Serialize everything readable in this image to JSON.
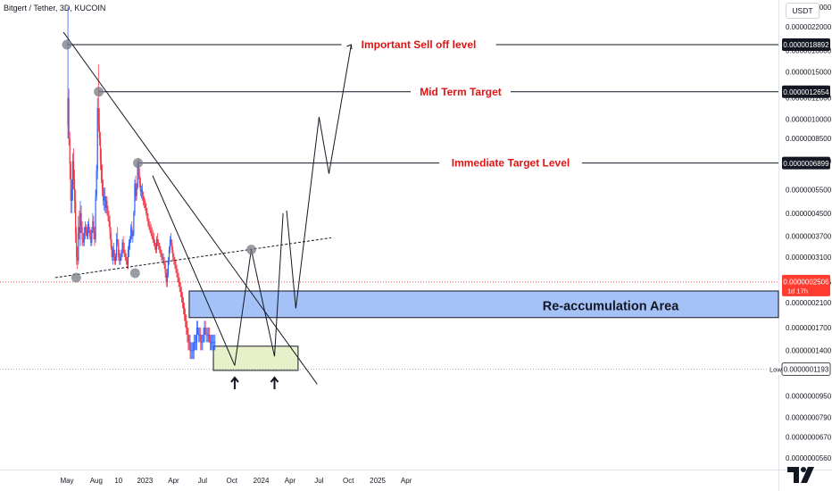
{
  "header": {
    "title": "Bitgert / Tether, 3D, KUCOIN",
    "currency": "USDT"
  },
  "colors": {
    "up": "#2962ff",
    "down": "#f23645",
    "annotation_red": "#e01414",
    "price_bg": "#ff3b30",
    "zone_blue": "#7ea6f5",
    "zone_green": "#e7f0c8",
    "marker_dot": "#787b86"
  },
  "chart_data": {
    "type": "candlestick",
    "symbol": "Bitgert / Tether",
    "interval": "3D",
    "exchange": "KUCOIN",
    "y_scale": "log",
    "y_tick_labels": [
      "0.0000026000",
      "0.0000022000",
      "0.0000018000",
      "0.0000015000",
      "0.0000012000",
      "0.0000010000",
      "0.0000008500",
      "0.0000007000",
      "0.0000005500",
      "0.0000004500",
      "0.0000003700",
      "0.0000003100",
      "0.0000002506",
      "0.0000002100",
      "0.0000001700",
      "0.0000001400",
      "0.0000001193",
      "0.0000000950",
      "0.0000000790",
      "0.0000000670",
      "0.0000000560"
    ],
    "x_tick_labels": [
      "May",
      "Aug",
      "10",
      "2023",
      "Apr",
      "Jul",
      "Oct",
      "2024",
      "Apr",
      "Jul",
      "Oct",
      "2025",
      "Apr"
    ],
    "levels": [
      {
        "label": "Important Sell off level",
        "price_label": "0.0000018892",
        "value": 1.8892e-06
      },
      {
        "label": "Mid Term Target",
        "price_label": "0.0000012654",
        "value": 1.2654e-06
      },
      {
        "label": "Immediate Target Level",
        "price_label": "0.0000006899",
        "value": 6.899e-07
      }
    ],
    "current_price": {
      "label": "0.0000002506",
      "value": 2.506e-07,
      "countdown": "1d 17h"
    },
    "low": {
      "tag": "Low",
      "label": "0.0000001193",
      "value": 1.193e-07
    },
    "zones": [
      {
        "label": "Re-accumulation Area",
        "from": 1.85e-07,
        "to": 2.32e-07
      },
      {
        "label": "",
        "from": 1.18e-07,
        "to": 1.45e-07
      }
    ],
    "candles": [
      [
        "2022-05-04",
        9.5e-07,
        2.6e-06,
        8.5e-07,
        1.2e-06
      ],
      [
        "2022-05-07",
        1.2e-06,
        1.3e-06,
        8e-07,
        8.5e-07
      ],
      [
        "2022-05-10",
        8.5e-07,
        9e-07,
        6e-07,
        6.8e-07
      ],
      [
        "2022-05-13",
        6.8e-07,
        7e-07,
        4.5e-07,
        5e-07
      ],
      [
        "2022-05-16",
        5e-07,
        6e-07,
        4.5e-07,
        5.5e-07
      ],
      [
        "2022-05-19",
        5.5e-07,
        7.5e-07,
        5e-07,
        7e-07
      ],
      [
        "2022-05-22",
        7e-07,
        7.8e-07,
        5.5e-07,
        6e-07
      ],
      [
        "2022-05-25",
        6e-07,
        6.5e-07,
        4.5e-07,
        5e-07
      ],
      [
        "2022-05-28",
        5e-07,
        5.5e-07,
        3.5e-07,
        3.8e-07
      ],
      [
        "2022-05-31",
        3.8e-07,
        4e-07,
        2.9e-07,
        3.1e-07
      ],
      [
        "2022-06-03",
        3.1e-07,
        3.4e-07,
        2.8e-07,
        3e-07
      ],
      [
        "2022-06-06",
        3e-07,
        4.4e-07,
        2.9e-07,
        4e-07
      ],
      [
        "2022-06-09",
        4e-07,
        4.6e-07,
        3.6e-07,
        3.8e-07
      ],
      [
        "2022-06-12",
        3.8e-07,
        5e-07,
        3.4e-07,
        4.5e-07
      ],
      [
        "2022-06-15",
        4.5e-07,
        4.8e-07,
        3.8e-07,
        4e-07
      ],
      [
        "2022-06-18",
        4e-07,
        4.2e-07,
        3.4e-07,
        3.6e-07
      ],
      [
        "2022-06-21",
        3.6e-07,
        3.8e-07,
        3.4e-07,
        3.5e-07
      ],
      [
        "2022-06-24",
        3.5e-07,
        4e-07,
        3.4e-07,
        3.8e-07
      ],
      [
        "2022-06-27",
        3.8e-07,
        4.2e-07,
        3.6e-07,
        4e-07
      ],
      [
        "2022-06-30",
        4e-07,
        4.1e-07,
        3.7e-07,
        3.9e-07
      ],
      [
        "2022-07-03",
        3.9e-07,
        4e-07,
        3.6e-07,
        3.7e-07
      ],
      [
        "2022-07-06",
        3.7e-07,
        4.2e-07,
        3.6e-07,
        4.1e-07
      ],
      [
        "2022-07-09",
        4.1e-07,
        4.3e-07,
        3.8e-07,
        3.9e-07
      ],
      [
        "2022-07-12",
        3.9e-07,
        4e-07,
        3.6e-07,
        3.7e-07
      ],
      [
        "2022-07-15",
        3.7e-07,
        3.9e-07,
        3.4e-07,
        3.5e-07
      ],
      [
        "2022-07-18",
        3.5e-07,
        4e-07,
        3.4e-07,
        3.9e-07
      ],
      [
        "2022-07-21",
        3.9e-07,
        4.5e-07,
        3.8e-07,
        4.2e-07
      ],
      [
        "2022-07-24",
        4.2e-07,
        4.4e-07,
        3.6e-07,
        3.8e-07
      ],
      [
        "2022-07-27",
        3.8e-07,
        4e-07,
        3.4e-07,
        3.6e-07
      ],
      [
        "2022-07-30",
        3.6e-07,
        5.5e-07,
        3.5e-07,
        5.2e-07
      ],
      [
        "2022-08-02",
        5.2e-07,
        6.8e-07,
        5e-07,
        6.5e-07
      ],
      [
        "2022-08-05",
        6.5e-07,
        1.2e-06,
        6e-07,
        1.1e-06
      ],
      [
        "2022-08-08",
        1.1e-06,
        1.6e-06,
        9e-07,
        9.5e-07
      ],
      [
        "2022-08-11",
        9.5e-07,
        1.1e-06,
        8e-07,
        8.5e-07
      ],
      [
        "2022-08-14",
        8.5e-07,
        9e-07,
        6.5e-07,
        7e-07
      ],
      [
        "2022-08-17",
        7e-07,
        7.8e-07,
        5.8e-07,
        6e-07
      ],
      [
        "2022-08-20",
        6e-07,
        6.8e-07,
        5.2e-07,
        5.5e-07
      ],
      [
        "2022-08-23",
        5.5e-07,
        6e-07,
        4.8e-07,
        5e-07
      ],
      [
        "2022-08-26",
        5e-07,
        5.6e-07,
        4.6e-07,
        5.2e-07
      ],
      [
        "2022-08-29",
        5.2e-07,
        5.6e-07,
        4.5e-07,
        4.7e-07
      ],
      [
        "2022-09-01",
        4.7e-07,
        5.2e-07,
        4.5e-07,
        5e-07
      ],
      [
        "2022-09-04",
        5e-07,
        5.2e-07,
        4.4e-07,
        4.5e-07
      ],
      [
        "2022-09-07",
        4.5e-07,
        4.8e-07,
        4.2e-07,
        4.4e-07
      ],
      [
        "2022-09-10",
        4.4e-07,
        4.6e-07,
        4e-07,
        4.2e-07
      ],
      [
        "2022-09-13",
        4.2e-07,
        4.4e-07,
        3.6e-07,
        3.8e-07
      ],
      [
        "2022-09-16",
        3.8e-07,
        4e-07,
        3.3e-07,
        3.4e-07
      ],
      [
        "2022-09-19",
        3.4e-07,
        3.6e-07,
        3e-07,
        3.1e-07
      ],
      [
        "2022-09-22",
        3.1e-07,
        3.4e-07,
        2.9e-07,
        3.3e-07
      ],
      [
        "2022-09-25",
        3.3e-07,
        3.5e-07,
        3e-07,
        3.1e-07
      ],
      [
        "2022-09-28",
        3.1e-07,
        3.3e-07,
        2.9e-07,
        3e-07
      ],
      [
        "2022-10-01",
        3e-07,
        3.2e-07,
        2.9e-07,
        3.1e-07
      ],
      [
        "2022-10-04",
        3.1e-07,
        3.8e-07,
        3e-07,
        3.6e-07
      ],
      [
        "2022-10-07",
        3.6e-07,
        4e-07,
        3.4e-07,
        3.5e-07
      ],
      [
        "2022-10-10",
        3.5e-07,
        3.6e-07,
        3e-07,
        3.1e-07
      ],
      [
        "2022-10-13",
        3.1e-07,
        3.3e-07,
        2.9e-07,
        3e-07
      ],
      [
        "2022-10-16",
        3e-07,
        3.2e-07,
        2.9e-07,
        3.1e-07
      ],
      [
        "2022-10-19",
        3.1e-07,
        3.3e-07,
        3e-07,
        3.2e-07
      ],
      [
        "2022-10-22",
        3.2e-07,
        3.6e-07,
        3.1e-07,
        3.5e-07
      ],
      [
        "2022-10-25",
        3.5e-07,
        3.7e-07,
        3.2e-07,
        3.3e-07
      ],
      [
        "2022-10-28",
        3.3e-07,
        3.5e-07,
        3.1e-07,
        3.2e-07
      ],
      [
        "2022-10-31",
        3.2e-07,
        3.3e-07,
        3e-07,
        3.1e-07
      ],
      [
        "2022-11-03",
        3.1e-07,
        3.2e-07,
        2.9e-07,
        3e-07
      ],
      [
        "2022-11-06",
        3e-07,
        3.1e-07,
        2.8e-07,
        2.9e-07
      ],
      [
        "2022-11-09",
        2.9e-07,
        3.4e-07,
        2.8e-07,
        3.3e-07
      ],
      [
        "2022-11-12",
        3.3e-07,
        3.6e-07,
        3.1e-07,
        3.5e-07
      ],
      [
        "2022-11-15",
        3.5e-07,
        3.7e-07,
        3.3e-07,
        3.6e-07
      ],
      [
        "2022-11-18",
        3.6e-07,
        4.1e-07,
        3.5e-07,
        4e-07
      ],
      [
        "2022-11-21",
        4e-07,
        4.2e-07,
        3.6e-07,
        3.7e-07
      ],
      [
        "2022-11-24",
        3.7e-07,
        3.9e-07,
        3.5e-07,
        3.8e-07
      ],
      [
        "2022-11-27",
        3.8e-07,
        4.6e-07,
        3.7e-07,
        4.5e-07
      ],
      [
        "2022-11-30",
        4.5e-07,
        6e-07,
        4.4e-07,
        5.8e-07
      ],
      [
        "2022-12-03",
        5.8e-07,
        6.2e-07,
        5e-07,
        5.2e-07
      ],
      [
        "2022-12-06",
        5.2e-07,
        5.8e-07,
        5e-07,
        5.6e-07
      ],
      [
        "2022-12-09",
        5.6e-07,
        7e-07,
        5.5e-07,
        6.8e-07
      ],
      [
        "2022-12-12",
        6.8e-07,
        7.2e-07,
        6e-07,
        6.2e-07
      ],
      [
        "2022-12-15",
        6.2e-07,
        6.6e-07,
        5.6e-07,
        5.8e-07
      ],
      [
        "2022-12-18",
        5.8e-07,
        6.1e-07,
        5.2e-07,
        5.4e-07
      ],
      [
        "2022-12-21",
        5.4e-07,
        5.7e-07,
        5.1e-07,
        5.5e-07
      ],
      [
        "2022-12-24",
        5.5e-07,
        5.8e-07,
        5e-07,
        5.2e-07
      ],
      [
        "2022-12-27",
        5.2e-07,
        5.4e-07,
        4.8e-07,
        5e-07
      ],
      [
        "2022-12-30",
        5e-07,
        5.2e-07,
        4.7e-07,
        4.9e-07
      ],
      [
        "2023-01-02",
        4.9e-07,
        5.1e-07,
        4.6e-07,
        4.7e-07
      ],
      [
        "2023-01-05",
        4.7e-07,
        4.9e-07,
        4.4e-07,
        4.5e-07
      ],
      [
        "2023-01-08",
        4.5e-07,
        4.7e-07,
        4.2e-07,
        4.3e-07
      ],
      [
        "2023-01-11",
        4.3e-07,
        4.5e-07,
        4e-07,
        4.1e-07
      ],
      [
        "2023-01-14",
        4.1e-07,
        4.3e-07,
        3.9e-07,
        4e-07
      ],
      [
        "2023-01-17",
        4e-07,
        4.2e-07,
        3.8e-07,
        3.9e-07
      ],
      [
        "2023-01-20",
        3.9e-07,
        4.1e-07,
        3.7e-07,
        3.8e-07
      ],
      [
        "2023-01-23",
        3.8e-07,
        4e-07,
        3.6e-07,
        3.7e-07
      ],
      [
        "2023-01-26",
        3.7e-07,
        3.9e-07,
        3.5e-07,
        3.6e-07
      ],
      [
        "2023-01-29",
        3.6e-07,
        3.8e-07,
        3.4e-07,
        3.5e-07
      ],
      [
        "2023-02-01",
        3.5e-07,
        3.6e-07,
        3.3e-07,
        3.4e-07
      ],
      [
        "2023-02-04",
        3.4e-07,
        3.5e-07,
        3.2e-07,
        3.3e-07
      ],
      [
        "2023-02-07",
        3.3e-07,
        3.7e-07,
        3.2e-07,
        3.6e-07
      ],
      [
        "2023-02-10",
        3.6e-07,
        3.8e-07,
        3.4e-07,
        3.5e-07
      ],
      [
        "2023-02-13",
        3.5e-07,
        3.6e-07,
        3.3e-07,
        3.4e-07
      ],
      [
        "2023-02-16",
        3.4e-07,
        3.5e-07,
        3.2e-07,
        3.3e-07
      ],
      [
        "2023-02-19",
        3.3e-07,
        3.4e-07,
        3.1e-07,
        3.2e-07
      ],
      [
        "2023-02-22",
        3.2e-07,
        3.3e-07,
        3e-07,
        3.1e-07
      ],
      [
        "2023-02-25",
        3.1e-07,
        3.2e-07,
        3e-07,
        3.1e-07
      ],
      [
        "2023-02-28",
        3.1e-07,
        3.2e-07,
        2.9e-07,
        3e-07
      ],
      [
        "2023-03-03",
        3e-07,
        3.1e-07,
        2.8e-07,
        2.9e-07
      ],
      [
        "2023-03-06",
        2.9e-07,
        3e-07,
        2.6e-07,
        2.7e-07
      ],
      [
        "2023-03-09",
        2.7e-07,
        2.8e-07,
        2.4e-07,
        2.5e-07
      ],
      [
        "2023-03-12",
        2.5e-07,
        2.8e-07,
        2.4e-07,
        2.7e-07
      ],
      [
        "2023-03-15",
        2.7e-07,
        3.1e-07,
        2.6e-07,
        3e-07
      ],
      [
        "2023-03-18",
        3e-07,
        3.4e-07,
        2.9e-07,
        3.3e-07
      ],
      [
        "2023-03-21",
        3.3e-07,
        3.7e-07,
        3.2e-07,
        3.6e-07
      ],
      [
        "2023-03-24",
        3.6e-07,
        3.8e-07,
        3.4e-07,
        3.5e-07
      ],
      [
        "2023-03-27",
        3.5e-07,
        3.6e-07,
        3.2e-07,
        3.3e-07
      ],
      [
        "2023-03-30",
        3.3e-07,
        3.4e-07,
        3e-07,
        3.1e-07
      ],
      [
        "2023-04-02",
        3.1e-07,
        3.2e-07,
        2.9e-07,
        3e-07
      ],
      [
        "2023-04-05",
        3e-07,
        3.1e-07,
        2.8e-07,
        2.9e-07
      ],
      [
        "2023-04-08",
        2.9e-07,
        3e-07,
        2.7e-07,
        2.8e-07
      ],
      [
        "2023-04-11",
        2.8e-07,
        2.9e-07,
        2.6e-07,
        2.7e-07
      ],
      [
        "2023-04-14",
        2.7e-07,
        2.8e-07,
        2.5e-07,
        2.6e-07
      ],
      [
        "2023-04-17",
        2.6e-07,
        2.7e-07,
        2.4e-07,
        2.5e-07
      ],
      [
        "2023-04-20",
        2.5e-07,
        2.6e-07,
        2.3e-07,
        2.4e-07
      ],
      [
        "2023-04-23",
        2.4e-07,
        2.5e-07,
        2.2e-07,
        2.3e-07
      ],
      [
        "2023-04-26",
        2.3e-07,
        2.4e-07,
        2.1e-07,
        2.2e-07
      ],
      [
        "2023-04-29",
        2.2e-07,
        2.3e-07,
        2e-07,
        2.1e-07
      ],
      [
        "2023-05-02",
        2.1e-07,
        2.2e-07,
        1.9e-07,
        2e-07
      ],
      [
        "2023-05-05",
        2e-07,
        2.1e-07,
        1.8e-07,
        1.9e-07
      ],
      [
        "2023-05-08",
        1.9e-07,
        2e-07,
        1.7e-07,
        1.8e-07
      ],
      [
        "2023-05-11",
        1.8e-07,
        1.9e-07,
        1.6e-07,
        1.7e-07
      ],
      [
        "2023-05-14",
        1.7e-07,
        1.8e-07,
        1.5e-07,
        1.6e-07
      ],
      [
        "2023-05-17",
        1.6e-07,
        1.7e-07,
        1.4e-07,
        1.5e-07
      ],
      [
        "2023-05-20",
        1.5e-07,
        1.6e-07,
        1.4e-07,
        1.5e-07
      ],
      [
        "2023-05-23",
        1.5e-07,
        1.6e-07,
        1.3e-07,
        1.4e-07
      ],
      [
        "2023-05-26",
        1.4e-07,
        1.5e-07,
        1.3e-07,
        1.4e-07
      ],
      [
        "2023-05-29",
        1.4e-07,
        1.5e-07,
        1.3e-07,
        1.4e-07
      ],
      [
        "2023-06-01",
        1.4e-07,
        1.5e-07,
        1.3e-07,
        1.4e-07
      ],
      [
        "2023-06-04",
        1.4e-07,
        1.6e-07,
        1.3e-07,
        1.5e-07
      ],
      [
        "2023-06-07",
        1.5e-07,
        1.6e-07,
        1.4e-07,
        1.5e-07
      ],
      [
        "2023-06-10",
        1.5e-07,
        1.6e-07,
        1.4e-07,
        1.5e-07
      ],
      [
        "2023-06-13",
        1.5e-07,
        1.8e-07,
        1.4e-07,
        1.7e-07
      ],
      [
        "2023-06-16",
        1.7e-07,
        1.8e-07,
        1.6e-07,
        1.6e-07
      ],
      [
        "2023-06-19",
        1.6e-07,
        1.7e-07,
        1.5e-07,
        1.6e-07
      ],
      [
        "2023-06-22",
        1.6e-07,
        1.7e-07,
        1.5e-07,
        1.6e-07
      ],
      [
        "2023-06-25",
        1.6e-07,
        1.7e-07,
        1.4e-07,
        1.5e-07
      ],
      [
        "2023-06-28",
        1.5e-07,
        1.6e-07,
        1.4e-07,
        1.5e-07
      ],
      [
        "2023-07-01",
        1.5e-07,
        1.6e-07,
        1.4e-07,
        1.5e-07
      ],
      [
        "2023-07-04",
        1.5e-07,
        1.7e-07,
        1.5e-07,
        1.6e-07
      ],
      [
        "2023-07-07",
        1.6e-07,
        1.8e-07,
        1.5e-07,
        1.7e-07
      ],
      [
        "2023-07-10",
        1.7e-07,
        1.8e-07,
        1.6e-07,
        1.6e-07
      ],
      [
        "2023-07-13",
        1.6e-07,
        1.7e-07,
        1.5e-07,
        1.6e-07
      ],
      [
        "2023-07-16",
        1.6e-07,
        1.7e-07,
        1.5e-07,
        1.6e-07
      ],
      [
        "2023-07-19",
        1.6e-07,
        1.7e-07,
        1.5e-07,
        1.6e-07
      ],
      [
        "2023-07-22",
        1.6e-07,
        1.7e-07,
        1.5e-07,
        1.5e-07
      ],
      [
        "2023-07-25",
        1.5e-07,
        1.6e-07,
        1.4e-07,
        1.5e-07
      ],
      [
        "2023-07-28",
        1.5e-07,
        1.6e-07,
        1.4e-07,
        1.5e-07
      ],
      [
        "2023-07-31",
        1.5e-07,
        1.6e-07,
        1.4e-07,
        1.5e-07
      ],
      [
        "2023-08-03",
        1.5e-07,
        1.6e-07,
        1.4e-07,
        1.5e-07
      ],
      [
        "2023-08-06",
        1.5e-07,
        1.6e-07,
        1.4e-07,
        1.5e-07
      ],
      [
        "2023-08-09",
        1.5e-07,
        1.6e-07,
        1.4e-07,
        1.5e-07
      ]
    ]
  }
}
